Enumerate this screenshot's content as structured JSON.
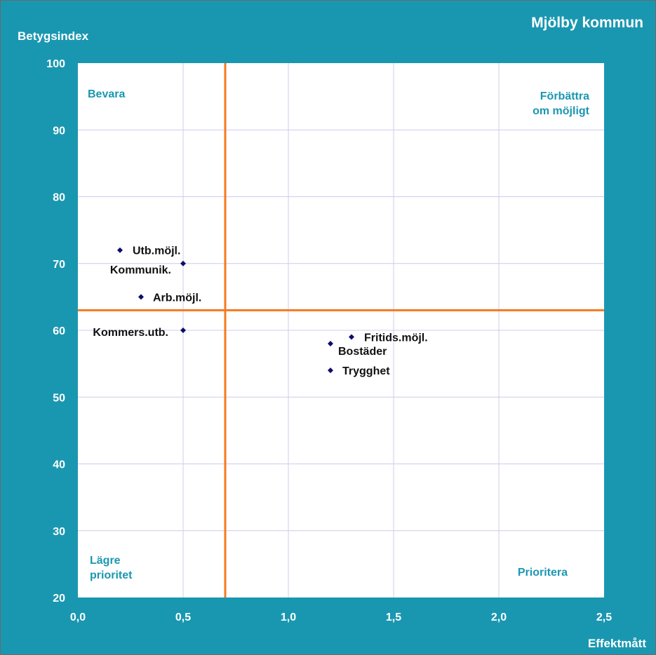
{
  "chart_data": {
    "type": "scatter",
    "title": "Mjölby kommun",
    "xlabel": "Effektmått",
    "ylabel": "Betygsindex",
    "xlim": [
      0,
      2.5
    ],
    "ylim": [
      20,
      100
    ],
    "x_ticks": [
      "0,0",
      "0,5",
      "1,0",
      "1,5",
      "2,0",
      "2,5"
    ],
    "y_ticks": [
      "20",
      "30",
      "40",
      "50",
      "60",
      "70",
      "80",
      "90",
      "100"
    ],
    "grid": true,
    "reference_lines": {
      "x": 0.7,
      "y": 63
    },
    "quadrant_labels": {
      "top_left": "Bevara",
      "top_right": [
        "Förbättra",
        "om möjligt"
      ],
      "bottom_left": [
        "Lägre",
        "prioritet"
      ],
      "bottom_right": "Prioritera"
    },
    "points": [
      {
        "label": "Utb.möjl.",
        "x": 0.2,
        "y": 72
      },
      {
        "label": "Kommunik.",
        "x": 0.5,
        "y": 70
      },
      {
        "label": "Arb.möjl.",
        "x": 0.3,
        "y": 65
      },
      {
        "label": "Kommers.utb.",
        "x": 0.5,
        "y": 60
      },
      {
        "label": "Fritids.möjl.",
        "x": 1.3,
        "y": 59
      },
      {
        "label": "Bostäder",
        "x": 1.2,
        "y": 58
      },
      {
        "label": "Trygghet",
        "x": 1.2,
        "y": 54
      }
    ]
  },
  "colors": {
    "frame_background": "#1a97b0",
    "plot_background": "#ffffff",
    "gridline": "#ccccee",
    "reference_line": "#f47920",
    "marker": "#0d0d6b",
    "quadrant_text": "#1a97b0"
  }
}
